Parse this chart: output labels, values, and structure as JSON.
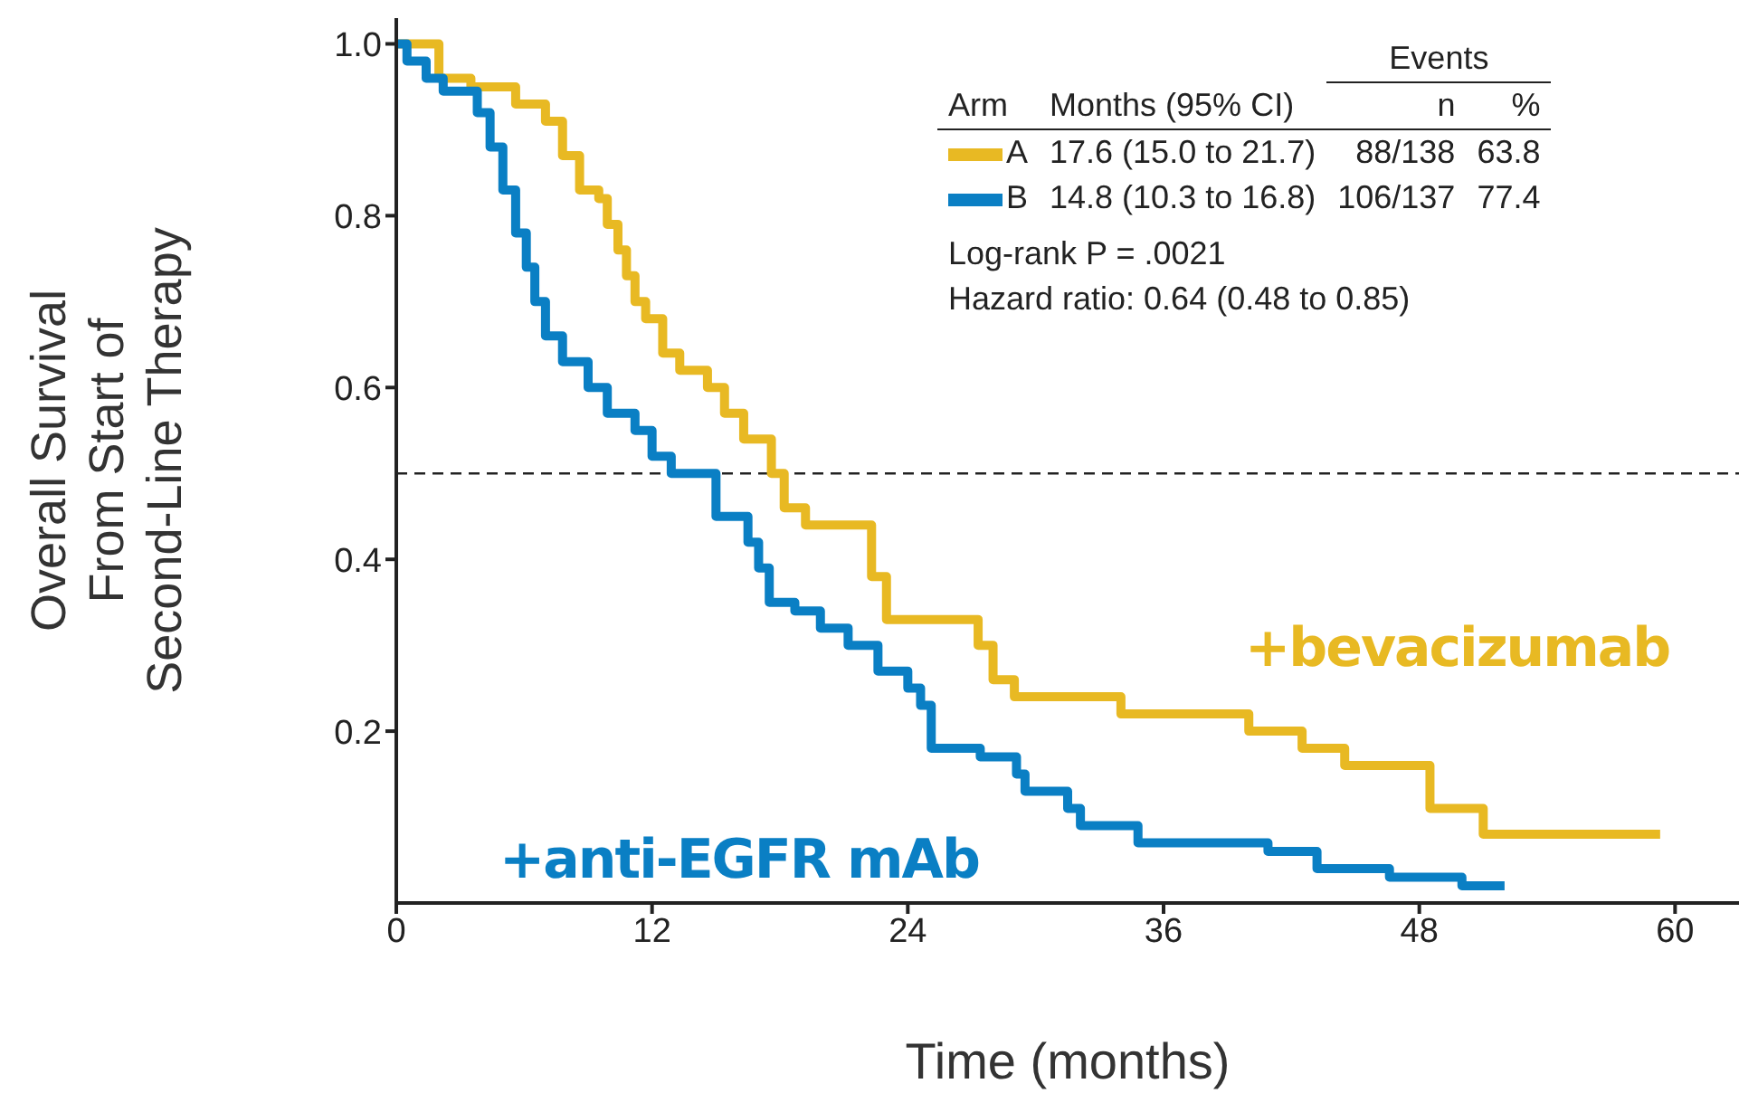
{
  "chart_data": {
    "type": "step",
    "xlabel": "Time (months)",
    "ylabel": "Overall Survival\nFrom Start of\nSecond-Line Therapy",
    "xlim": [
      0,
      63
    ],
    "xticks": [
      0,
      12,
      24,
      36,
      48,
      60
    ],
    "ylim": [
      0,
      1.03
    ],
    "yticks": [
      0.2,
      0.4,
      0.6,
      0.8,
      {
        "value": 1,
        "label": "1.0"
      }
    ],
    "legend": "top",
    "legend_title": "Arm",
    "line_style": "solid",
    "marker": "none",
    "series": [
      {
        "name": "A",
        "color": "#e8b923",
        "x": [
          0,
          2,
          3.5,
          5.6,
          7,
          7.8,
          8.6,
          9.5,
          9.9,
          10.4,
          10.8,
          11.2,
          11.7,
          12.5,
          13.3,
          14.6,
          15.4,
          16.3,
          17.6,
          18.2,
          19.2,
          22.3,
          23,
          27.3,
          28,
          29,
          34,
          40,
          42.5,
          44.5,
          48.5,
          51,
          59.3
        ],
        "values": [
          1,
          0.96,
          0.95,
          0.93,
          0.91,
          0.87,
          0.83,
          0.82,
          0.79,
          0.76,
          0.73,
          0.7,
          0.68,
          0.64,
          0.62,
          0.6,
          0.57,
          0.54,
          0.5,
          0.46,
          0.44,
          0.38,
          0.33,
          0.3,
          0.26,
          0.24,
          0.22,
          0.2,
          0.18,
          0.16,
          0.11,
          0.08,
          0.08
        ]
      },
      {
        "name": "B",
        "color": "#0a7fc4",
        "x": [
          0,
          0.5,
          1.4,
          2.2,
          3.8,
          4.4,
          5,
          5.6,
          6.1,
          6.5,
          7,
          7.8,
          9,
          9.9,
          11.2,
          12,
          12.9,
          15,
          16.5,
          17,
          17.5,
          18.7,
          19.9,
          21.2,
          22.6,
          24,
          24.6,
          25.1,
          27.4,
          29.1,
          29.5,
          31.5,
          32.1,
          34.8,
          40.9,
          43.2,
          46.6,
          50,
          52
        ],
        "values": [
          1,
          0.98,
          0.96,
          0.945,
          0.92,
          0.88,
          0.83,
          0.78,
          0.74,
          0.7,
          0.66,
          0.63,
          0.6,
          0.57,
          0.55,
          0.52,
          0.5,
          0.45,
          0.42,
          0.39,
          0.35,
          0.34,
          0.32,
          0.3,
          0.27,
          0.25,
          0.23,
          0.18,
          0.17,
          0.15,
          0.13,
          0.11,
          0.09,
          0.07,
          0.06,
          0.04,
          0.03,
          0.02,
          0.02
        ]
      }
    ],
    "ref_lines": [
      {
        "axis": "y",
        "value": 0.5,
        "line_style": "dashed",
        "color": "#222222"
      }
    ],
    "annotations": [
      "Events",
      "Months (95% CI)",
      "n",
      "%",
      "17.6 (15.0 to 21.7)",
      "88/138",
      "63.8",
      "14.8 (10.3 to 16.8)",
      "106/137",
      "77.4",
      "Log-rank P = .0021",
      "Hazard ratio: 0.64 (0.48 to 0.85)",
      "+bevacizumab",
      "+anti-EGFR mAb"
    ]
  }
}
